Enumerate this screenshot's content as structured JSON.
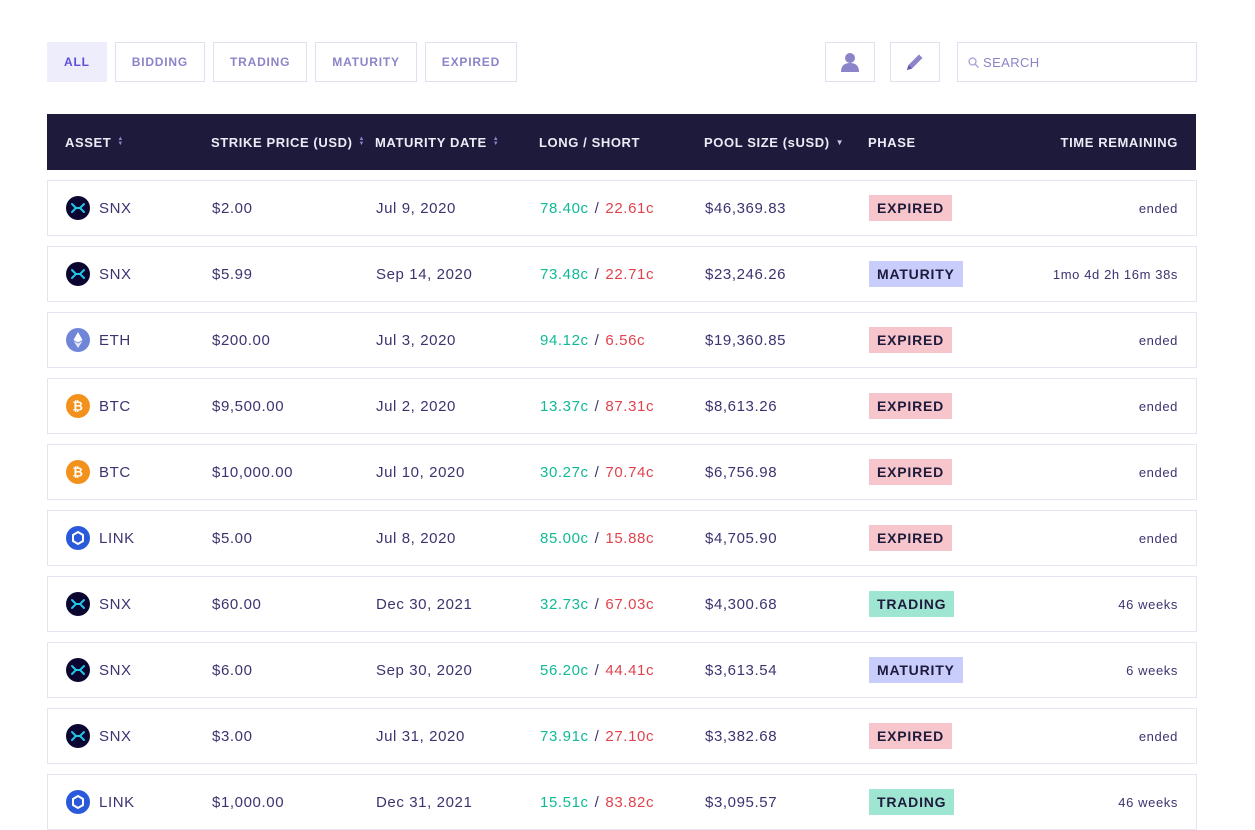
{
  "filters": [
    {
      "label": "ALL",
      "active": true
    },
    {
      "label": "BIDDING",
      "active": false
    },
    {
      "label": "TRADING",
      "active": false
    },
    {
      "label": "MATURITY",
      "active": false
    },
    {
      "label": "EXPIRED",
      "active": false
    }
  ],
  "search": {
    "placeholder": "SEARCH",
    "value": ""
  },
  "columns": {
    "asset": "ASSET",
    "strike": "STRIKE PRICE (USD)",
    "maturity": "MATURITY DATE",
    "long_short": "LONG / SHORT",
    "pool": "POOL SIZE (sUSD)",
    "phase": "PHASE",
    "time": "TIME REMAINING"
  },
  "phase_colors": {
    "EXPIRED": "#f7c6cc",
    "MATURITY": "#c8cdfb",
    "TRADING": "#9fe6d2"
  },
  "rows": [
    {
      "asset": "SNX",
      "icon": "snx-icon",
      "strike": "$2.00",
      "maturity": "Jul 9, 2020",
      "long": "78.40c",
      "short": "22.61c",
      "pool": "$46,369.83",
      "phase": "EXPIRED",
      "time": "ended"
    },
    {
      "asset": "SNX",
      "icon": "snx-icon",
      "strike": "$5.99",
      "maturity": "Sep 14, 2020",
      "long": "73.48c",
      "short": "22.71c",
      "pool": "$23,246.26",
      "phase": "MATURITY",
      "time": "1mo 4d 2h 16m 38s"
    },
    {
      "asset": "ETH",
      "icon": "eth-icon",
      "strike": "$200.00",
      "maturity": "Jul 3, 2020",
      "long": "94.12c",
      "short": "6.56c",
      "pool": "$19,360.85",
      "phase": "EXPIRED",
      "time": "ended"
    },
    {
      "asset": "BTC",
      "icon": "btc-icon",
      "strike": "$9,500.00",
      "maturity": "Jul 2, 2020",
      "long": "13.37c",
      "short": "87.31c",
      "pool": "$8,613.26",
      "phase": "EXPIRED",
      "time": "ended"
    },
    {
      "asset": "BTC",
      "icon": "btc-icon",
      "strike": "$10,000.00",
      "maturity": "Jul 10, 2020",
      "long": "30.27c",
      "short": "70.74c",
      "pool": "$6,756.98",
      "phase": "EXPIRED",
      "time": "ended"
    },
    {
      "asset": "LINK",
      "icon": "link-icon",
      "strike": "$5.00",
      "maturity": "Jul 8, 2020",
      "long": "85.00c",
      "short": "15.88c",
      "pool": "$4,705.90",
      "phase": "EXPIRED",
      "time": "ended"
    },
    {
      "asset": "SNX",
      "icon": "snx-icon",
      "strike": "$60.00",
      "maturity": "Dec 30, 2021",
      "long": "32.73c",
      "short": "67.03c",
      "pool": "$4,300.68",
      "phase": "TRADING",
      "time": "46 weeks"
    },
    {
      "asset": "SNX",
      "icon": "snx-icon",
      "strike": "$6.00",
      "maturity": "Sep 30, 2020",
      "long": "56.20c",
      "short": "44.41c",
      "pool": "$3,613.54",
      "phase": "MATURITY",
      "time": "6 weeks"
    },
    {
      "asset": "SNX",
      "icon": "snx-icon",
      "strike": "$3.00",
      "maturity": "Jul 31, 2020",
      "long": "73.91c",
      "short": "27.10c",
      "pool": "$3,382.68",
      "phase": "EXPIRED",
      "time": "ended"
    },
    {
      "asset": "LINK",
      "icon": "link-icon",
      "strike": "$1,000.00",
      "maturity": "Dec 31, 2021",
      "long": "15.51c",
      "short": "83.82c",
      "pool": "$3,095.57",
      "phase": "TRADING",
      "time": "46 weeks"
    }
  ]
}
